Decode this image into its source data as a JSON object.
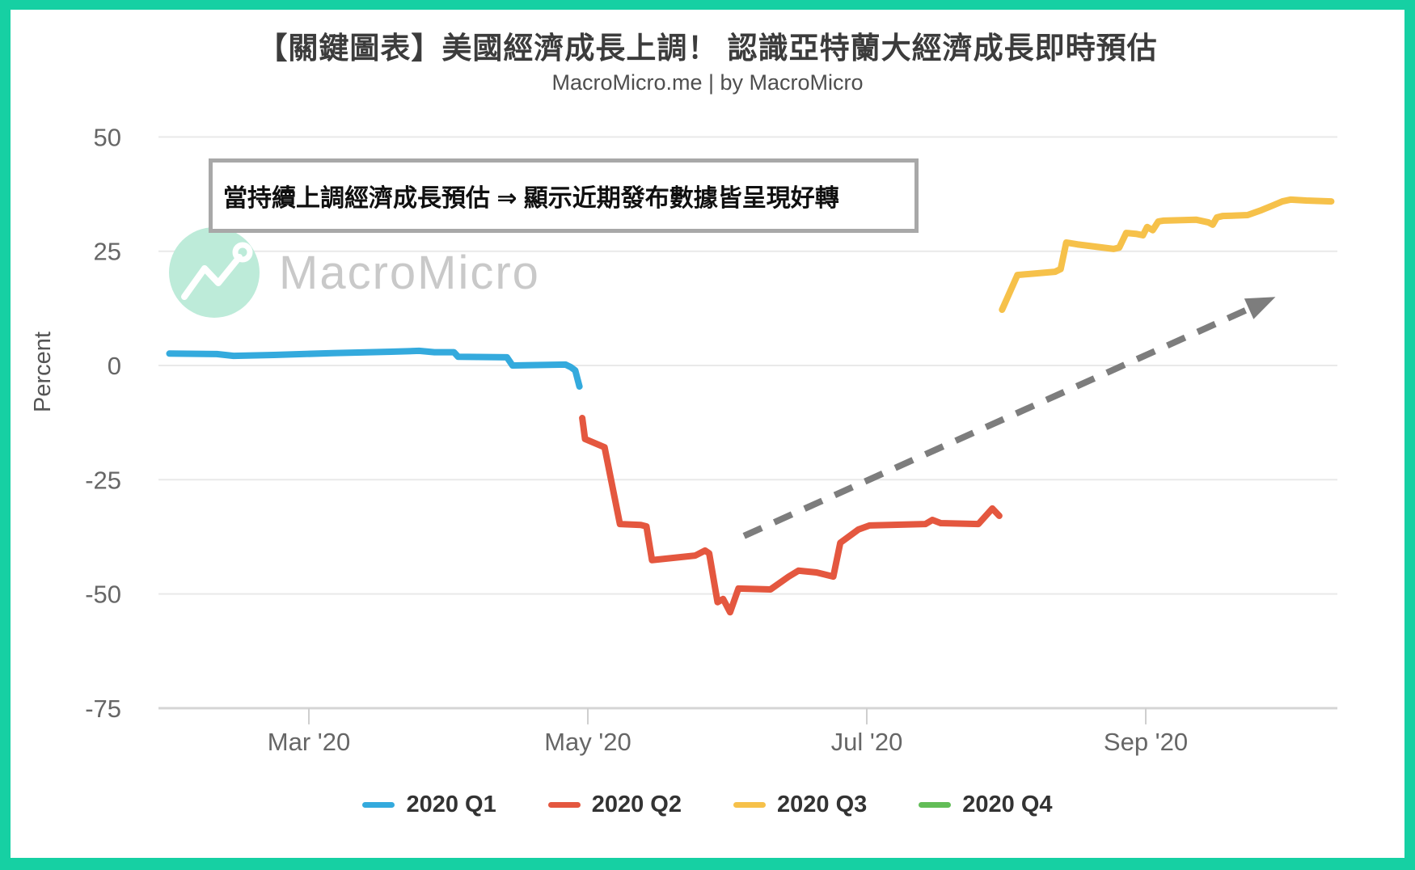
{
  "frame": {
    "border_color": "#16d0a3",
    "background": "#ffffff"
  },
  "header": {
    "title": "【關鍵圖表】美國經濟成長上調！ 認識亞特蘭大經濟成長即時預估",
    "subtitle": "MacroMicro.me | by MacroMicro"
  },
  "annotation": {
    "text": "當持續上調經濟成長預估 ⇒ 顯示近期發布數據皆呈現好轉"
  },
  "watermark": {
    "text": "MacroMicro",
    "circle_color": "#bdebd9",
    "text_color": "#c9c9c9"
  },
  "chart_data": {
    "type": "line",
    "title": "【關鍵圖表】美國經濟成長上調！ 認識亞特蘭大經濟成長即時預估",
    "subtitle": "MacroMicro.me | by MacroMicro",
    "xlabel": "",
    "ylabel": "Percent",
    "ylim": [
      -75,
      50
    ],
    "xlim_months_2020": [
      1.93,
      10.38
    ],
    "grid": "horizontal",
    "legend_position": "bottom",
    "y_ticks": [
      50,
      25,
      0,
      -25,
      -50,
      -75
    ],
    "x_ticks": [
      {
        "month": 3,
        "label": "Mar '20"
      },
      {
        "month": 5,
        "label": "May '20"
      },
      {
        "month": 7,
        "label": "Jul '20"
      },
      {
        "month": 9,
        "label": "Sep '20"
      }
    ],
    "x_unit": "month of 2020 (decimal = fraction of month)",
    "y_unit": "percent (annualized GDP growth estimate)",
    "series": [
      {
        "name": "2020 Q1",
        "color": "#34aadd",
        "points": [
          [
            2.0,
            2.6
          ],
          [
            2.34,
            2.5
          ],
          [
            2.46,
            2.1
          ],
          [
            2.75,
            2.3
          ],
          [
            3.17,
            2.7
          ],
          [
            3.59,
            3.0
          ],
          [
            3.79,
            3.2
          ],
          [
            3.9,
            2.9
          ],
          [
            4.04,
            2.9
          ],
          [
            4.07,
            1.9
          ],
          [
            4.42,
            1.8
          ],
          [
            4.46,
            0.0
          ],
          [
            4.84,
            0.2
          ],
          [
            4.88,
            -0.4
          ],
          [
            4.91,
            -1.1
          ],
          [
            4.94,
            -4.6
          ]
        ]
      },
      {
        "name": "2020 Q2",
        "color": "#e4573f",
        "points": [
          [
            4.96,
            -11.5
          ],
          [
            4.98,
            -16.1
          ],
          [
            5.12,
            -17.9
          ],
          [
            5.23,
            -34.7
          ],
          [
            5.38,
            -34.9
          ],
          [
            5.42,
            -35.2
          ],
          [
            5.46,
            -42.6
          ],
          [
            5.77,
            -41.6
          ],
          [
            5.84,
            -40.5
          ],
          [
            5.87,
            -41.1
          ],
          [
            5.93,
            -51.8
          ],
          [
            5.97,
            -51.1
          ],
          [
            6.02,
            -54.0
          ],
          [
            6.08,
            -48.8
          ],
          [
            6.31,
            -49.0
          ],
          [
            6.44,
            -46.2
          ],
          [
            6.51,
            -44.9
          ],
          [
            6.64,
            -45.3
          ],
          [
            6.76,
            -46.2
          ],
          [
            6.81,
            -38.8
          ],
          [
            6.94,
            -35.9
          ],
          [
            7.02,
            -35.0
          ],
          [
            7.42,
            -34.7
          ],
          [
            7.47,
            -33.8
          ],
          [
            7.53,
            -34.5
          ],
          [
            7.8,
            -34.7
          ],
          [
            7.9,
            -31.3
          ],
          [
            7.95,
            -32.9
          ]
        ]
      },
      {
        "name": "2020 Q3",
        "color": "#f6c14a",
        "points": [
          [
            7.97,
            12.2
          ],
          [
            8.08,
            19.8
          ],
          [
            8.35,
            20.5
          ],
          [
            8.39,
            21.1
          ],
          [
            8.43,
            26.9
          ],
          [
            8.51,
            26.5
          ],
          [
            8.77,
            25.5
          ],
          [
            8.81,
            25.8
          ],
          [
            8.86,
            29.0
          ],
          [
            8.93,
            28.8
          ],
          [
            8.98,
            28.5
          ],
          [
            9.01,
            30.3
          ],
          [
            9.05,
            29.6
          ],
          [
            9.09,
            31.5
          ],
          [
            9.13,
            31.7
          ],
          [
            9.36,
            31.9
          ],
          [
            9.45,
            31.3
          ],
          [
            9.48,
            30.8
          ],
          [
            9.51,
            32.4
          ],
          [
            9.55,
            32.7
          ],
          [
            9.73,
            32.9
          ],
          [
            9.83,
            34.0
          ],
          [
            9.91,
            35.0
          ],
          [
            9.98,
            35.9
          ],
          [
            10.04,
            36.3
          ],
          [
            10.15,
            36.1
          ],
          [
            10.33,
            35.9
          ]
        ]
      },
      {
        "name": "2020 Q4",
        "color": "#62bd57",
        "points": []
      }
    ],
    "trend_arrow": {
      "from": [
        6.12,
        -37.3
      ],
      "to": [
        9.93,
        15.0
      ],
      "style": "dashed",
      "color": "#7d7d7d"
    }
  }
}
